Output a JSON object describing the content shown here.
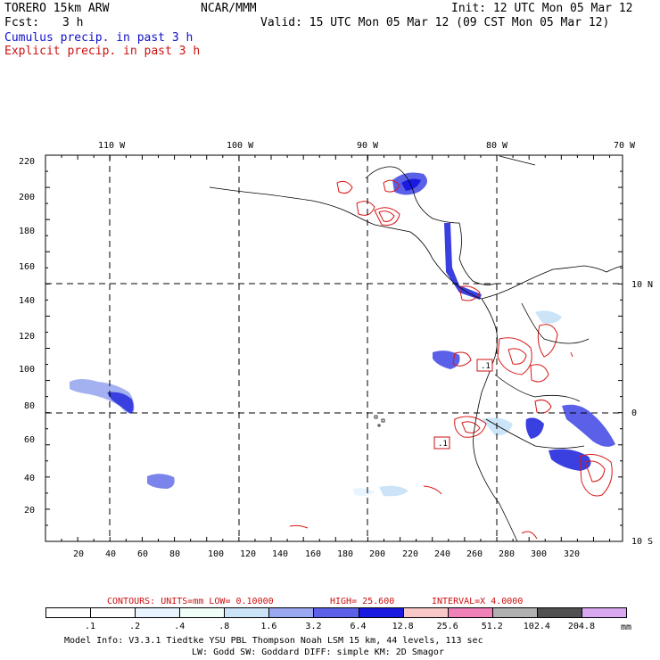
{
  "header": {
    "model": "TORERO  15km ARW",
    "org": "NCAR/MMM",
    "init": "Init: 12 UTC Mon 05 Mar 12",
    "fcst_label": "Fcst:",
    "fcst_value": "3 h",
    "valid": "Valid: 15 UTC Mon 05 Mar 12 (09 CST Mon 05 Mar 12)",
    "legend_cumulus": "Cumulus precip. in past 3 h",
    "legend_explicit": "Explicit precip. in past 3 h"
  },
  "colors": {
    "cumulus": "#1010cc",
    "explicit": "#cc1010",
    "contour": "#d81818",
    "grid": "#000000"
  },
  "map": {
    "top_lon_labels": [
      "110 W",
      "100 W",
      "90 W",
      "80 W",
      "70 W"
    ],
    "right_lat_labels": [
      "10 N",
      "0",
      "10 S"
    ],
    "y_ticks": [
      "20",
      "40",
      "60",
      "80",
      "100",
      "120",
      "140",
      "160",
      "180",
      "200",
      "220"
    ],
    "x_ticks": [
      "20",
      "40",
      "60",
      "80",
      "100",
      "120",
      "140",
      "160",
      "180",
      "200",
      "220",
      "240",
      "260",
      "280",
      "300",
      "320"
    ],
    "low_labels": [
      ".1",
      ".1"
    ]
  },
  "contour_info": {
    "contours": "CONTOURS:  UNITS=mm  LOW= 0.10000",
    "high": "HIGH=  25.600",
    "interval": "INTERVAL=X  4.0000"
  },
  "colorbar": {
    "labels": [
      ".1",
      ".2",
      ".4",
      ".8",
      "1.6",
      "3.2",
      "6.4",
      "12.8",
      "25.6",
      "51.2",
      "102.4",
      "204.8"
    ],
    "unit": "mm",
    "colors": [
      "#ffffff",
      "#ffffff",
      "#e8f4ff",
      "#f0fff8",
      "#cce4f8",
      "#9aa8f0",
      "#5a60e8",
      "#1a1ae0",
      "#f8c8c8",
      "#f080b8",
      "#b0b0b0",
      "#505050",
      "#d8a8f0"
    ]
  },
  "footer": {
    "line1": "Model Info: V3.3.1   Tiedtke YSU PBL  Thompson    Noah LSM  15 km,   44 levels,  113 sec",
    "line2": "LW: Godd SW: Goddard DIFF: simple KM: 2D Smagor"
  }
}
